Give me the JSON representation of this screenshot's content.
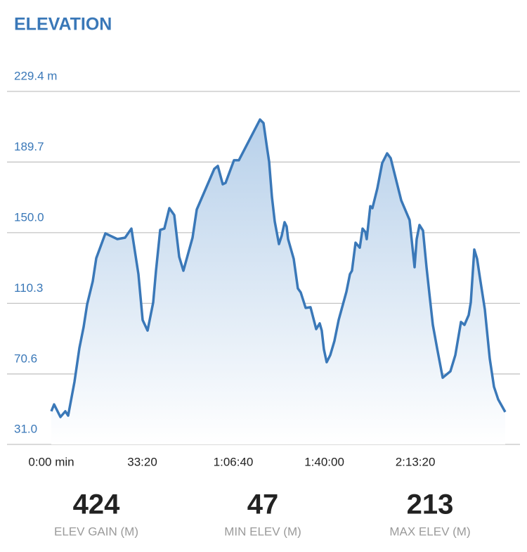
{
  "chart_data": {
    "type": "area",
    "title": "ELEVATION",
    "x": [
      0,
      62,
      201,
      309,
      371,
      510,
      618,
      710,
      787,
      911,
      988,
      1189,
      1451,
      1621,
      1760,
      1914,
      2007,
      2115,
      2239,
      2300,
      2393,
      2485,
      2594,
      2702,
      2810,
      2903,
      3103,
      3196,
      3582,
      3659,
      3767,
      3829,
      4014,
      4122,
      4586,
      4663,
      4740,
      4786,
      4848,
      4910,
      5003,
      5064,
      5126,
      5172,
      5203,
      5327,
      5419,
      5481,
      5589,
      5697,
      5821,
      5898,
      5944,
      5991,
      6052,
      6130,
      6222,
      6315,
      6485,
      6562,
      6608,
      6686,
      6778,
      6840,
      6902,
      6932,
      7010,
      7056,
      7164,
      7272,
      7380,
      7458,
      7689,
      7874,
      7983,
      8029,
      8091,
      8168,
      8245,
      8322,
      8384,
      8477,
      8600,
      8770,
      8878,
      9002,
      9079,
      9172,
      9218,
      9295,
      9357,
      9419,
      9527,
      9635,
      9728,
      9821,
      9975
    ],
    "series": [
      {
        "color": "#3a78b8",
        "values": [
          49.6,
          53.5,
          46.4,
          49.6,
          47.2,
          66.2,
          85.2,
          97,
          109.7,
          122.7,
          135.7,
          149.6,
          146.4,
          147.2,
          152.3,
          126.7,
          100.9,
          95,
          110.8,
          128.6,
          151.6,
          152.3,
          163.8,
          159.9,
          136.5,
          128.6,
          147.2,
          163,
          185.9,
          187.5,
          177.2,
          178,
          190.7,
          190.7,
          213.6,
          211.6,
          197.8,
          189.9,
          170.1,
          156.3,
          143.6,
          148.4,
          155.9,
          153.5,
          146.4,
          135.3,
          118.7,
          116.4,
          107.7,
          108.1,
          95.8,
          99,
          95,
          84.4,
          77.2,
          81.2,
          89.1,
          101,
          116.8,
          126.7,
          128.6,
          144.4,
          141.6,
          152.3,
          150.3,
          146.4,
          164.9,
          163.8,
          174.9,
          189.1,
          194.6,
          191.9,
          168.2,
          157.1,
          130.6,
          146.4,
          154.3,
          151.2,
          130.6,
          112.8,
          98.2,
          85.2,
          68.5,
          72.1,
          81.2,
          99.8,
          98.2,
          103.7,
          110.8,
          140.5,
          135.3,
          124.7,
          106.9,
          79.2,
          63.4,
          56.3,
          49.2
        ]
      }
    ],
    "xlim": [
      0,
      9975
    ],
    "xticks": [
      {
        "value": 0,
        "label": "0:00 min"
      },
      {
        "value": 2000,
        "label": "33:20"
      },
      {
        "value": 4000,
        "label": "1:06:40"
      },
      {
        "value": 6000,
        "label": "1:40:00"
      },
      {
        "value": 8000,
        "label": "2:13:20"
      }
    ],
    "ylim": [
      31,
      229.4
    ],
    "yticks": [
      {
        "value": 31,
        "label": "31.0"
      },
      70.6,
      110.3,
      {
        "value": 150,
        "label": "150.0"
      },
      189.7,
      {
        "value": 229.4,
        "label": "229.4 m"
      }
    ],
    "grid": true
  },
  "stats": [
    {
      "value": "424",
      "label": "ELEV GAIN (M)"
    },
    {
      "value": "47",
      "label": "MIN ELEV (M)"
    },
    {
      "value": "213",
      "label": "MAX ELEV (M)"
    }
  ]
}
